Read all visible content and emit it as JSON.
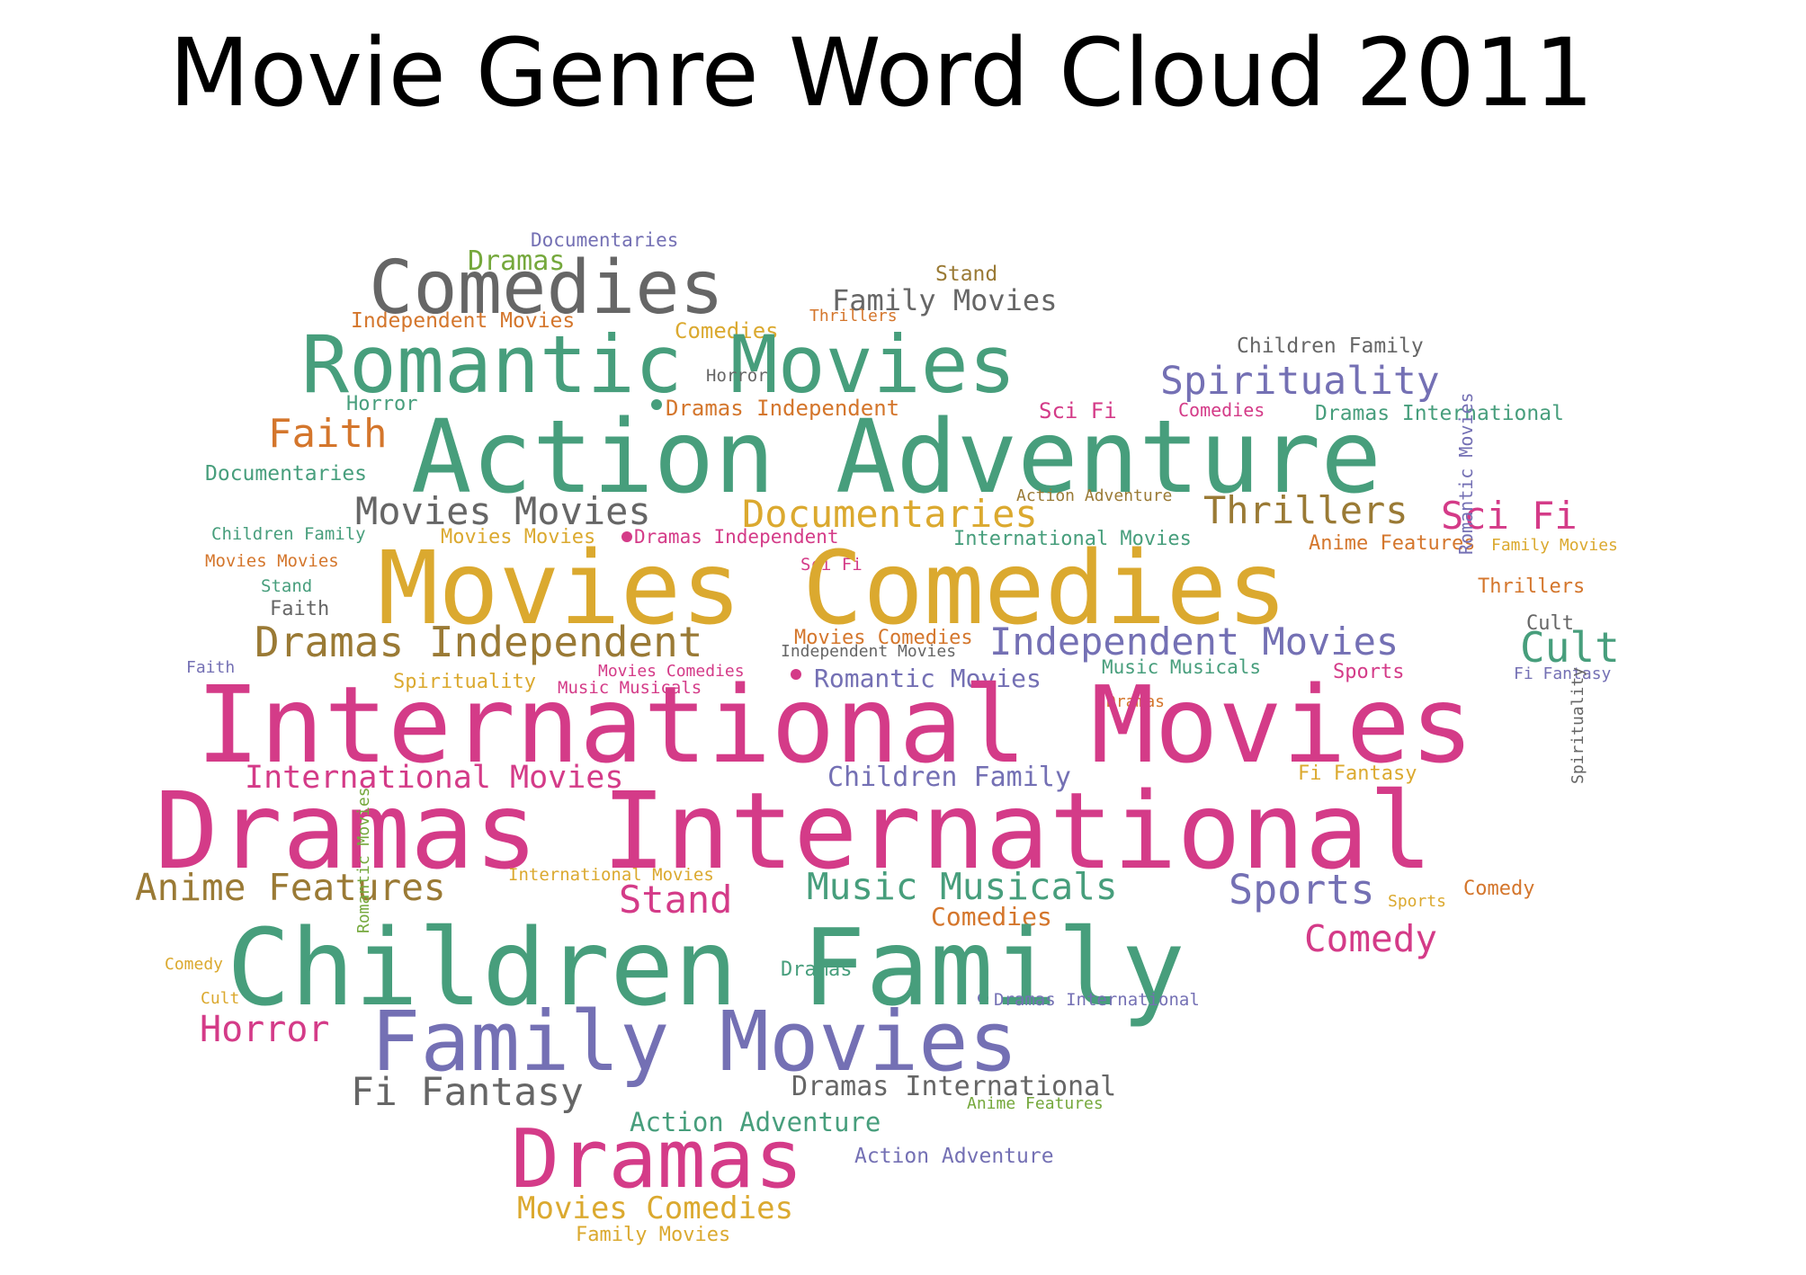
{
  "title": "Movie Genre Word Cloud 2011",
  "colors": {
    "green": "#479e7c",
    "pink": "#d43b88",
    "gold": "#dba92f",
    "purple": "#7470b4",
    "gray": "#666666",
    "orange": "#d4762c",
    "olive": "#9a7a35",
    "lime": "#75a83c"
  },
  "words": [
    {
      "text": "Documentaries",
      "color": "purple"
    },
    {
      "text": "Dramas",
      "color": "lime"
    },
    {
      "text": "Comedies",
      "color": "gray"
    },
    {
      "text": "Stand",
      "color": "olive"
    },
    {
      "text": "Family Movies",
      "color": "gray"
    },
    {
      "text": "Thrillers",
      "color": "orange"
    },
    {
      "text": "Independent Movies",
      "color": "orange"
    },
    {
      "text": "Comedies",
      "color": "gold"
    },
    {
      "text": "Romantic Movies",
      "color": "green"
    },
    {
      "text": "Children Family",
      "color": "gray"
    },
    {
      "text": "Horror",
      "color": "gray"
    },
    {
      "text": "Spirituality",
      "color": "purple"
    },
    {
      "text": "Horror",
      "color": "green"
    },
    {
      "text": "Dramas Independent",
      "color": "orange"
    },
    {
      "text": "Sci Fi",
      "color": "pink"
    },
    {
      "text": "Comedies",
      "color": "pink"
    },
    {
      "text": "Dramas International",
      "color": "green"
    },
    {
      "text": "Faith",
      "color": "orange"
    },
    {
      "text": "Action Adventure",
      "color": "green"
    },
    {
      "text": "Documentaries",
      "color": "green"
    },
    {
      "text": "Movies Movies",
      "color": "gray"
    },
    {
      "text": "Documentaries",
      "color": "gold"
    },
    {
      "text": "Action Adventure",
      "color": "olive"
    },
    {
      "text": "Thrillers",
      "color": "olive"
    },
    {
      "text": "Sci Fi",
      "color": "pink"
    },
    {
      "text": "Children Family",
      "color": "green"
    },
    {
      "text": "Movies Movies",
      "color": "gold"
    },
    {
      "text": "Dramas Independent",
      "color": "pink"
    },
    {
      "text": "International Movies",
      "color": "green"
    },
    {
      "text": "Anime Features",
      "color": "orange"
    },
    {
      "text": "Family Movies",
      "color": "gold"
    },
    {
      "text": "Movies Movies",
      "color": "orange"
    },
    {
      "text": "Sci Fi",
      "color": "pink"
    },
    {
      "text": "Movies Comedies",
      "color": "gold"
    },
    {
      "text": "Stand",
      "color": "green"
    },
    {
      "text": "Thrillers",
      "color": "orange"
    },
    {
      "text": "Faith",
      "color": "gray"
    },
    {
      "text": "Romantic Movies",
      "color": "purple"
    },
    {
      "text": "Cult",
      "color": "gray"
    },
    {
      "text": "Dramas Independent",
      "color": "olive"
    },
    {
      "text": "Movies Comedies",
      "color": "orange"
    },
    {
      "text": "Independent Movies",
      "color": "gray"
    },
    {
      "text": "Independent Movies",
      "color": "purple"
    },
    {
      "text": "Cult",
      "color": "green"
    },
    {
      "text": "Faith",
      "color": "purple"
    },
    {
      "text": "Spirituality",
      "color": "gold"
    },
    {
      "text": "Movies Comedies",
      "color": "pink"
    },
    {
      "text": "Music Musicals",
      "color": "pink"
    },
    {
      "text": "Romantic Movies",
      "color": "purple"
    },
    {
      "text": "Music Musicals",
      "color": "green"
    },
    {
      "text": "Sports",
      "color": "pink"
    },
    {
      "text": "Fi Fantasy",
      "color": "purple"
    },
    {
      "text": "Dramas",
      "color": "orange"
    },
    {
      "text": "International Movies",
      "color": "pink"
    },
    {
      "text": "International Movies",
      "color": "pink"
    },
    {
      "text": "Children Family",
      "color": "purple"
    },
    {
      "text": "Fi Fantasy",
      "color": "gold"
    },
    {
      "text": "Dramas International",
      "color": "pink"
    },
    {
      "text": "Spirituality",
      "color": "gray"
    },
    {
      "text": "Anime Features",
      "color": "olive"
    },
    {
      "text": "International Movies",
      "color": "gold"
    },
    {
      "text": "Stand",
      "color": "pink"
    },
    {
      "text": "Music Musicals",
      "color": "green"
    },
    {
      "text": "Comedies",
      "color": "orange"
    },
    {
      "text": "Sports",
      "color": "purple"
    },
    {
      "text": "Sports",
      "color": "gold"
    },
    {
      "text": "Comedy",
      "color": "orange"
    },
    {
      "text": "Children Family",
      "color": "green"
    },
    {
      "text": "Comedy",
      "color": "pink"
    },
    {
      "text": "Comedy",
      "color": "gold"
    },
    {
      "text": "Romantic Movies",
      "color": "lime"
    },
    {
      "text": "Dramas",
      "color": "green"
    },
    {
      "text": "Cult",
      "color": "gold"
    },
    {
      "text": "Dramas International",
      "color": "purple"
    },
    {
      "text": "Horror",
      "color": "pink"
    },
    {
      "text": "Family Movies",
      "color": "purple"
    },
    {
      "text": "Fi Fantasy",
      "color": "gray"
    },
    {
      "text": "Dramas International",
      "color": "gray"
    },
    {
      "text": "Anime Features",
      "color": "lime"
    },
    {
      "text": "Action Adventure",
      "color": "green"
    },
    {
      "text": "Dramas",
      "color": "pink"
    },
    {
      "text": "Action Adventure",
      "color": "purple"
    },
    {
      "text": "Movies Comedies",
      "color": "gold"
    },
    {
      "text": "Family Movies",
      "color": "gold"
    }
  ]
}
